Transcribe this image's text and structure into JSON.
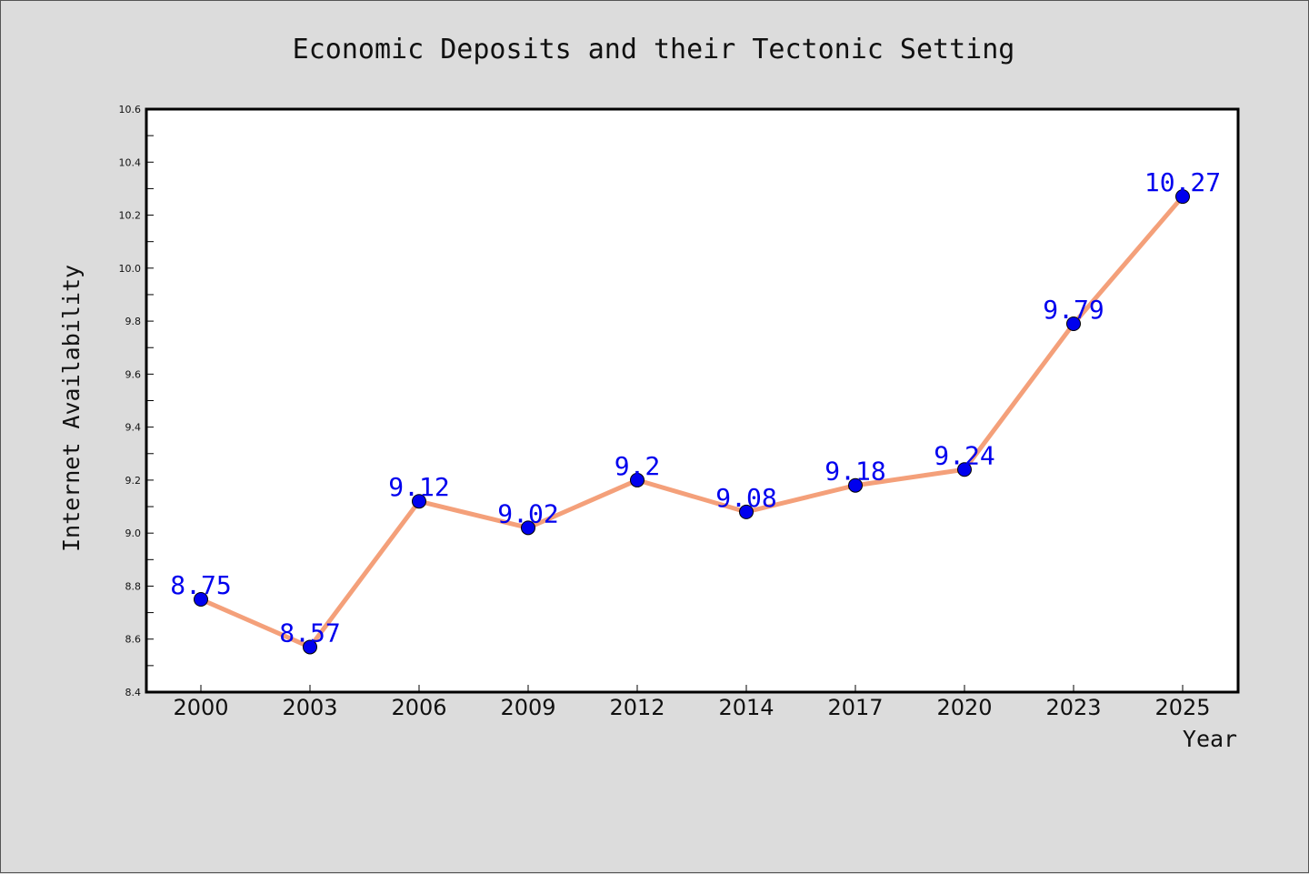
{
  "chart_data": {
    "type": "line",
    "title": "Economic Deposits and their Tectonic Setting",
    "xlabel": "Year",
    "ylabel": "Internet Availability",
    "categories": [
      "2000",
      "2003",
      "2006",
      "2009",
      "2012",
      "2014",
      "2017",
      "2020",
      "2023",
      "2025"
    ],
    "values": [
      8.75,
      8.57,
      9.12,
      9.02,
      9.2,
      9.08,
      9.18,
      9.24,
      9.79,
      10.27
    ],
    "data_labels": [
      "8.75",
      "8.57",
      "9.12",
      "9.02",
      "9.2",
      "9.08",
      "9.18",
      "9.24",
      "9.79",
      "10.27"
    ],
    "ylim": [
      8.4,
      10.6
    ],
    "yticks": [
      "8.4",
      "8.6",
      "8.8",
      "9.0",
      "9.2",
      "9.4",
      "9.6",
      "9.8",
      "10.0",
      "10.2",
      "10.4",
      "10.6"
    ],
    "grid": false,
    "colors": {
      "line": "#f4a07a",
      "marker": "#0000ee",
      "label": "#0000ee",
      "background": "#dcdcdc",
      "plot_area": "#ffffff"
    }
  }
}
